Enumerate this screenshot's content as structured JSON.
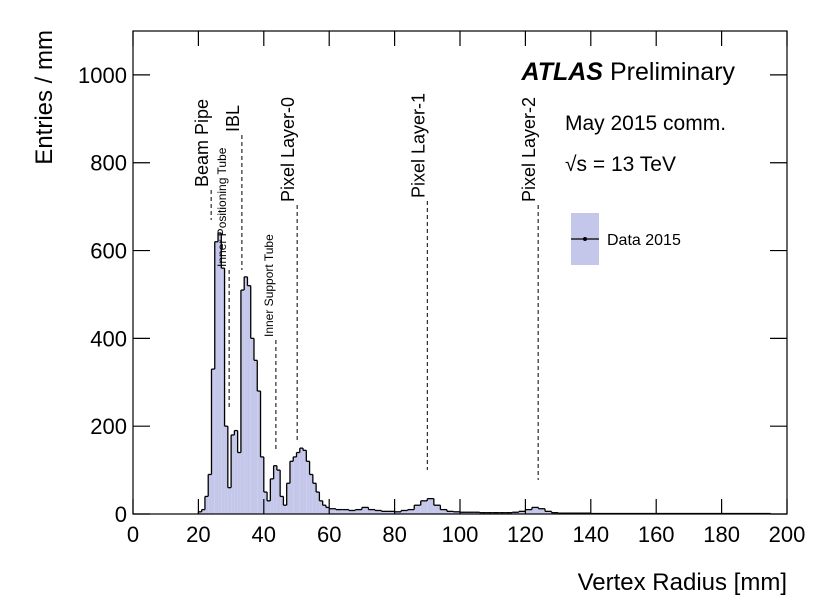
{
  "chart_data": {
    "type": "histogram",
    "experiment": "ATLAS",
    "status": "Preliminary",
    "texts": [
      "May 2015 comm.",
      "√s = 13 TeV"
    ],
    "x_label": "Vertex Radius [mm]",
    "y_label": "Entries / mm",
    "bins": [
      20,
      21,
      22,
      23,
      24,
      25,
      26,
      27,
      28,
      29,
      30,
      31,
      32,
      33,
      34,
      35,
      36,
      37,
      38,
      39,
      40,
      41,
      42,
      43,
      44,
      45,
      46,
      47,
      48,
      49,
      50,
      51,
      52,
      53,
      54,
      55,
      56,
      57,
      58,
      59,
      60,
      62,
      64,
      66,
      68,
      70,
      72,
      74,
      76,
      78,
      80,
      82,
      84,
      86,
      88,
      90,
      92,
      94,
      96,
      98,
      100,
      102,
      104,
      106,
      108,
      110,
      112,
      114,
      116,
      118,
      120,
      122,
      124,
      126,
      128,
      130,
      135,
      140,
      145,
      150,
      155,
      160,
      165,
      170,
      175,
      180,
      185,
      190,
      195
    ],
    "series": [
      {
        "name": "Data 2015",
        "color": "#c5c7ea",
        "values": [
          5,
          10,
          40,
          90,
          330,
          620,
          640,
          560,
          200,
          60,
          180,
          190,
          140,
          510,
          540,
          520,
          400,
          350,
          280,
          130,
          50,
          30,
          80,
          110,
          100,
          40,
          20,
          70,
          120,
          130,
          140,
          150,
          145,
          120,
          90,
          70,
          50,
          30,
          20,
          15,
          12,
          10,
          10,
          8,
          10,
          15,
          10,
          8,
          6,
          6,
          5,
          8,
          10,
          20,
          30,
          35,
          20,
          10,
          6,
          5,
          4,
          4,
          4,
          3,
          3,
          3,
          3,
          3,
          4,
          6,
          10,
          15,
          12,
          6,
          3,
          2,
          2,
          1,
          1,
          1,
          1,
          1,
          1,
          1,
          1,
          1,
          1,
          1
        ]
      }
    ],
    "annotations": [
      {
        "text": "Beam Pipe",
        "x": 23.9
      },
      {
        "text": "Inner Positioning Tube",
        "x": 29.4
      },
      {
        "text": "IBL",
        "x": 33.3
      },
      {
        "text": "Inner Support Tube",
        "x": 43.7
      },
      {
        "text": "Pixel Layer-0",
        "x": 50.2
      },
      {
        "text": "Pixel Layer-1",
        "x": 90
      },
      {
        "text": "Pixel Layer-2",
        "x": 123.9
      }
    ],
    "xlim": [
      0,
      200
    ],
    "xticks": [
      0,
      20,
      40,
      60,
      80,
      100,
      120,
      140,
      160,
      180,
      200
    ],
    "ylim": [
      0,
      1100
    ],
    "yticks": [
      0,
      200,
      400,
      600,
      800,
      1000
    ]
  }
}
